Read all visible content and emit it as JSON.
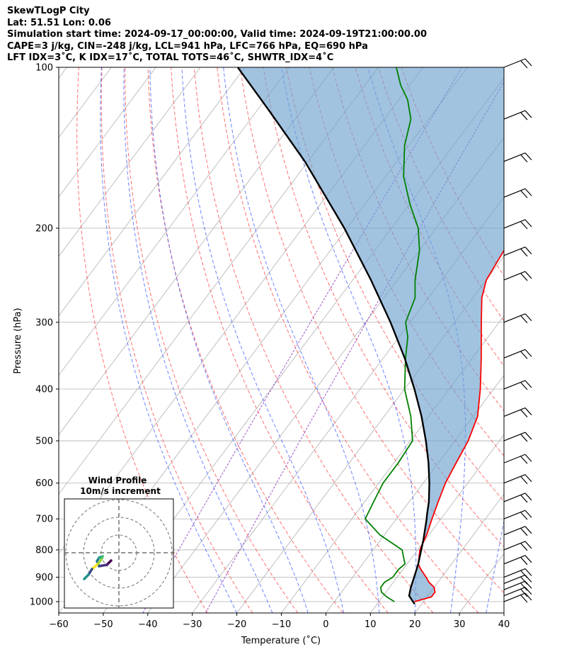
{
  "header": {
    "line1": "SkewTLogP City",
    "line2": "Lat: 51.51   Lon: 0.06",
    "line3": "Simulation start time: 2024-09-17_00:00:00, Valid time: 2024-09-19T21:00:00.00",
    "line4": "CAPE=3 j/kg, CIN=-248 j/kg, LCL=941 hPa, LFC=766 hPa, EQ=690 hPa",
    "line5": "LFT IDX=3˚C, K IDX=17˚C, TOTAL TOTS=46˚C, SHWTR_IDX=4˚C"
  },
  "chart_data": {
    "type": "line",
    "xlabel": "Temperature (˚C)",
    "ylabel": "Pressure (hPa)",
    "xlim": [
      -60,
      40
    ],
    "ylim": [
      1050,
      100
    ],
    "y_scale": "log",
    "grid": true,
    "x_ticks": [
      "−60",
      "−50",
      "−40",
      "−30",
      "−20",
      "−10",
      "0",
      "10",
      "20",
      "30",
      "40"
    ],
    "y_ticks": [
      "100",
      "200",
      "300",
      "400",
      "500",
      "600",
      "700",
      "800",
      "900",
      "1000"
    ],
    "series": [
      {
        "color": "#ff0000",
        "pressure": [
          1000,
          980,
          960,
          940,
          920,
          900,
          870,
          850,
          800,
          750,
          700,
          650,
          600,
          550,
          500,
          450,
          400,
          350,
          300,
          270,
          250,
          220,
          200,
          180,
          160,
          140,
          125,
          115,
          108,
          100
        ],
        "temperature": [
          18,
          21,
          21,
          20,
          18,
          16.5,
          14,
          12.5,
          10.5,
          9.5,
          8,
          6.5,
          5,
          4,
          3,
          1,
          -3,
          -8,
          -14,
          -18,
          -20,
          -21,
          -21,
          -21,
          -22,
          -24,
          -26,
          -28,
          -30,
          -31
        ]
      },
      {
        "color": "#008000",
        "pressure": [
          1000,
          980,
          960,
          940,
          920,
          900,
          870,
          850,
          800,
          750,
          700,
          650,
          600,
          550,
          500,
          450,
          400,
          350,
          320,
          300,
          270,
          250,
          220,
          200,
          180,
          160,
          140,
          125,
          115,
          108,
          100
        ],
        "temperature": [
          13.5,
          11,
          9,
          8,
          8,
          9,
          9,
          9.5,
          6.5,
          -1,
          -7,
          -8,
          -9,
          -9,
          -9.5,
          -14,
          -20,
          -25,
          -28,
          -31,
          -33,
          -36,
          -40,
          -44,
          -50,
          -56,
          -61,
          -64,
          -68,
          -72,
          -76
        ]
      },
      {
        "color": "#000000",
        "pressure": [
          1010,
          975,
          941,
          900,
          850,
          800,
          766,
          700,
          690,
          650,
          600,
          550,
          500,
          450,
          400,
          350,
          300,
          250,
          200,
          150,
          120,
          100
        ],
        "temperature": [
          18.4,
          15.8,
          14.8,
          13.8,
          12.5,
          10.8,
          9.6,
          6.8,
          6.3,
          4.4,
          1.4,
          -2.2,
          -6.5,
          -11.6,
          -17.8,
          -25.2,
          -34.4,
          -45.9,
          -60.6,
          -80.7,
          -97.6,
          -111.6
        ]
      }
    ],
    "wind_barbs": {
      "pressure": [
        1000,
        975,
        950,
        925,
        900,
        850,
        800,
        750,
        700,
        650,
        600,
        550,
        500,
        450,
        400,
        350,
        300,
        250,
        225,
        200,
        175,
        150,
        125,
        100
      ]
    },
    "inset": {
      "title": "Wind Profile",
      "subtitle": "10m/s increment",
      "type": "hodograph"
    }
  }
}
